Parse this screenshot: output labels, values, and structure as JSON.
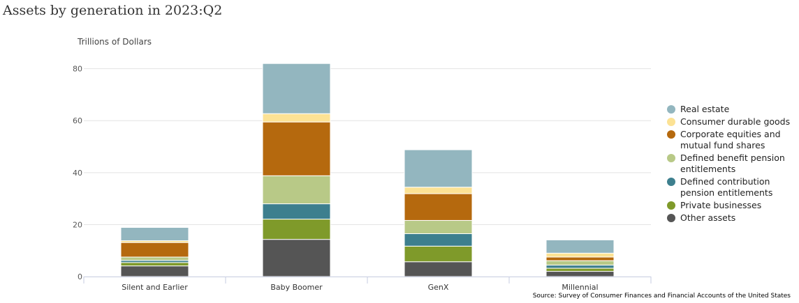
{
  "chart_data": {
    "type": "bar",
    "stacked": true,
    "title": "Assets by generation in 2023:Q2",
    "ylabel": "Trillions of Dollars",
    "ylim": [
      0,
      85
    ],
    "yticks": [
      0,
      20,
      40,
      60,
      80
    ],
    "grid": true,
    "legend_position": "right",
    "categories": [
      "Silent and Earlier",
      "Baby Boomer",
      "GenX",
      "Millennial"
    ],
    "series": [
      {
        "name": "Other assets",
        "color": "#555555",
        "values": [
          4.1,
          14.3,
          5.7,
          2.0
        ]
      },
      {
        "name": "Private businesses",
        "color": "#7f9a2a",
        "values": [
          1.3,
          7.8,
          6.0,
          1.2
        ]
      },
      {
        "name": "Defined contribution pension entitlements",
        "color": "#3d7f8e",
        "values": [
          0.8,
          5.9,
          4.8,
          1.2
        ]
      },
      {
        "name": "Defined benefit pension entitlements",
        "color": "#b8c987",
        "values": [
          1.3,
          10.8,
          5.1,
          1.7
        ]
      },
      {
        "name": "Corporate equities and mutual fund shares",
        "color": "#b5690e",
        "values": [
          5.6,
          20.7,
          10.3,
          1.4
        ]
      },
      {
        "name": "Consumer durable goods",
        "color": "#fce294",
        "values": [
          0.7,
          3.2,
          2.5,
          1.5
        ]
      },
      {
        "name": "Real estate",
        "color": "#93b6bf",
        "values": [
          5.1,
          19.3,
          14.4,
          5.1
        ]
      }
    ],
    "legend_order": [
      "Real estate",
      "Consumer durable goods",
      "Corporate equities and mutual fund shares",
      "Defined benefit pension entitlements",
      "Defined contribution pension entitlements",
      "Private businesses",
      "Other assets"
    ],
    "source": "Source: Survey of Consumer Finances and Financial Accounts of the United States"
  }
}
